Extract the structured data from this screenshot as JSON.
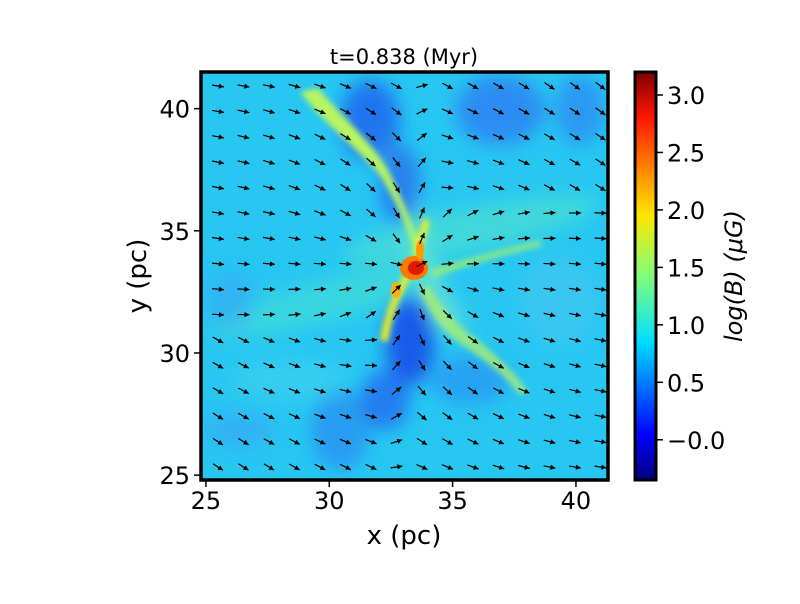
{
  "chart_data": {
    "type": "heatmap",
    "title": "t=0.838 (Myr)",
    "xlabel": "x (pc)",
    "ylabel": "y (pc)",
    "xlim": [
      24.8,
      41.3
    ],
    "ylim": [
      24.8,
      41.5
    ],
    "xticks": [
      25,
      30,
      35,
      40
    ],
    "yticks": [
      25,
      30,
      35,
      40
    ],
    "colorbar": {
      "label": "log(B) (μG)",
      "range": [
        -0.35,
        3.2
      ],
      "ticks": [
        -0.0,
        0.5,
        1.0,
        1.5,
        2.0,
        2.5,
        3.0
      ],
      "tick_labels": [
        "−0.0",
        "0.5",
        "1.0",
        "1.5",
        "2.0",
        "2.5",
        "3.0"
      ],
      "colormap": "jet"
    },
    "overlay": "magnetic field direction arrows (quiver)",
    "grid": false
  }
}
